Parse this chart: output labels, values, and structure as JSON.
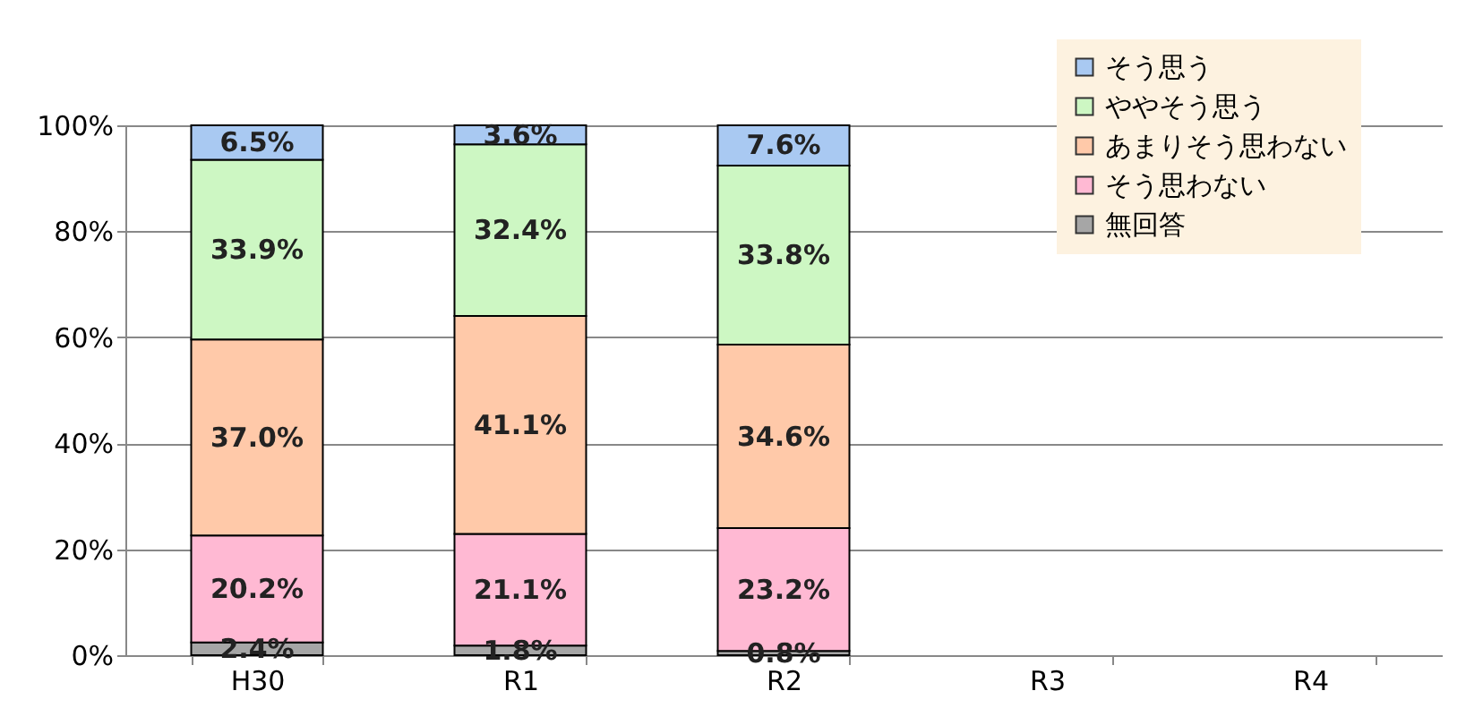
{
  "chart_data": {
    "type": "bar",
    "stacked": true,
    "categories": [
      "H30",
      "R1",
      "R2",
      "R3",
      "R4"
    ],
    "series": [
      {
        "name": "無回答",
        "color": "#a6a6a6",
        "values": [
          2.4,
          1.8,
          0.8,
          null,
          null
        ],
        "value_labels": [
          "2.4%",
          "1.8%",
          "0.8%",
          null,
          null
        ]
      },
      {
        "name": "そう思わない",
        "color": "#ffb9d3",
        "values": [
          20.2,
          21.1,
          23.2,
          null,
          null
        ],
        "value_labels": [
          "20.2%",
          "21.1%",
          "23.2%",
          null,
          null
        ]
      },
      {
        "name": "あまりそう思わない",
        "color": "#ffc9a9",
        "values": [
          37.0,
          41.1,
          34.6,
          null,
          null
        ],
        "value_labels": [
          "37.0%",
          "41.1%",
          "34.6%",
          null,
          null
        ]
      },
      {
        "name": "ややそう思う",
        "color": "#cdf7c3",
        "values": [
          33.9,
          32.4,
          33.8,
          null,
          null
        ],
        "value_labels": [
          "33.9%",
          "32.4%",
          "33.8%",
          null,
          null
        ]
      },
      {
        "name": "そう思う",
        "color": "#a9c9f2",
        "values": [
          6.5,
          3.6,
          7.6,
          null,
          null
        ],
        "value_labels": [
          "6.5%",
          "3.6%",
          "7.6%",
          null,
          null
        ]
      }
    ],
    "ylim": [
      0,
      100
    ],
    "yticks": [
      {
        "value": 0,
        "label": "0%"
      },
      {
        "value": 20,
        "label": "20%"
      },
      {
        "value": 40,
        "label": "40%"
      },
      {
        "value": 60,
        "label": "60%"
      },
      {
        "value": 80,
        "label": "80%"
      },
      {
        "value": 100,
        "label": "100%"
      }
    ],
    "grid": "y",
    "legend": "top right"
  }
}
